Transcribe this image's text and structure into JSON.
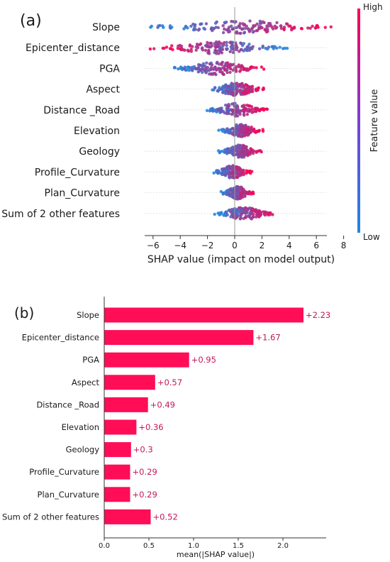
{
  "chart_data": [
    {
      "type": "scatter",
      "panel_label": "(a)",
      "xlabel": "SHAP value (impact on model output)",
      "xlim": [
        -7,
        8
      ],
      "xticks": [
        -6,
        -4,
        -2,
        0,
        2,
        4,
        6,
        8
      ],
      "features": [
        "Slope",
        "Epicenter_distance",
        "PGA",
        "Aspect",
        "Distance _Road",
        "Elevation",
        "Geology",
        "Profile_Curvature",
        "Plan_Curvature",
        "Sum of 2 other features"
      ],
      "ranges": [
        [
          -6.2,
          7.3
        ],
        [
          -6.3,
          3.9
        ],
        [
          -4.7,
          2.2
        ],
        [
          -2.0,
          2.2
        ],
        [
          -2.2,
          2.4
        ],
        [
          -1.2,
          2.1
        ],
        [
          -1.2,
          2.0
        ],
        [
          -1.6,
          1.3
        ],
        [
          -1.0,
          1.4
        ],
        [
          -1.5,
          2.9
        ]
      ],
      "colorbar": {
        "label": "Feature value",
        "high": "High",
        "low": "Low"
      },
      "colors": {
        "low": "#1e88e5",
        "high": "#ff0052"
      }
    },
    {
      "type": "bar",
      "panel_label": "(b)",
      "categories": [
        "Slope",
        "Epicenter_distance",
        "PGA",
        "Aspect",
        "Distance _Road",
        "Elevation",
        "Geology",
        "Profile_Curvature",
        "Plan_Curvature",
        "Sum of 2 other features"
      ],
      "values": [
        2.23,
        1.67,
        0.95,
        0.57,
        0.49,
        0.36,
        0.3,
        0.29,
        0.29,
        0.52
      ],
      "data_labels": [
        "+2.23",
        "+1.67",
        "+0.95",
        "+0.57",
        "+0.49",
        "+0.36",
        "+0.3",
        "+0.29",
        "+0.29",
        "+0.52"
      ],
      "xlabel": "mean(|SHAP value|)",
      "xlim": [
        0,
        2.4
      ],
      "xticks": [
        "0.0",
        "0.5",
        "1.0",
        "1.5",
        "2.0"
      ],
      "bar_color": "#ff0d57"
    }
  ]
}
